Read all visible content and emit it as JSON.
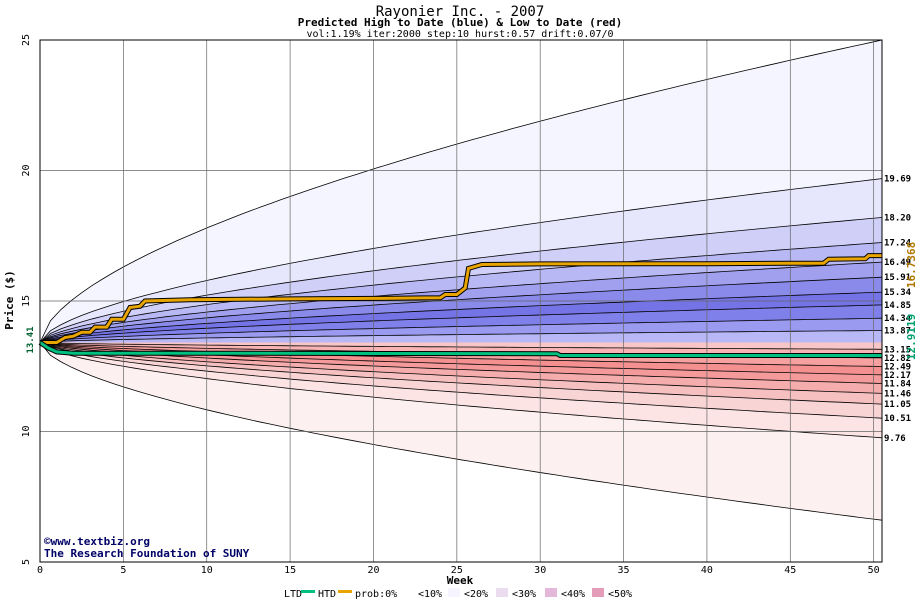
{
  "chart_data": {
    "type": "area",
    "title": "Rayonier Inc. - 2007",
    "subtitle": "Predicted High to Date (blue) &  Low to Date (red)",
    "params": "vol:1.19% iter:2000 step:10 hurst:0.57 drift:0.07/0",
    "xlabel": "Week",
    "ylabel": "Price ($)",
    "xlim": [
      0,
      50.5
    ],
    "ylim": [
      5,
      25
    ],
    "x_ticks": [
      0,
      5,
      10,
      15,
      20,
      25,
      30,
      35,
      40,
      45,
      50
    ],
    "y_ticks": [
      5,
      10,
      15,
      20,
      25
    ],
    "grid": true,
    "start_price": 13.41,
    "start_price_label": "13.41",
    "upper_bands": [
      {
        "prob": "0%",
        "end": 25.0,
        "end_label": ""
      },
      {
        "prob": "<10%",
        "end": 19.69,
        "end_label": "19.69"
      },
      {
        "prob": "<20%",
        "end": 18.2,
        "end_label": "18.20"
      },
      {
        "prob": "<30%",
        "end": 17.24,
        "end_label": "17.24"
      },
      {
        "prob": "<40%",
        "end": 16.49,
        "end_label": "16.49"
      },
      {
        "prob": "<50%",
        "end": 15.91,
        "end_label": "15.91"
      },
      {
        "prob": "<50%",
        "end": 15.34,
        "end_label": "15.34"
      },
      {
        "prob": "<50%",
        "end": 14.85,
        "end_label": "14.85"
      },
      {
        "prob": "<50%",
        "end": 14.34,
        "end_label": "14.34"
      },
      {
        "prob": "<50%",
        "end": 13.87,
        "end_label": "13.87"
      }
    ],
    "lower_bands": [
      {
        "prob": "<50%",
        "end": 13.15,
        "end_label": "13.15"
      },
      {
        "prob": "<50%",
        "end": 12.82,
        "end_label": "12.82"
      },
      {
        "prob": "<50%",
        "end": 12.49,
        "end_label": "12.49"
      },
      {
        "prob": "<50%",
        "end": 12.17,
        "end_label": "12.17"
      },
      {
        "prob": "<40%",
        "end": 11.84,
        "end_label": "11.84"
      },
      {
        "prob": "<30%",
        "end": 11.46,
        "end_label": "11.46"
      },
      {
        "prob": "<20%",
        "end": 11.05,
        "end_label": "11.05"
      },
      {
        "prob": "<10%",
        "end": 10.51,
        "end_label": "10.51"
      },
      {
        "prob": "0%",
        "end": 9.76,
        "end_label": "9.76"
      },
      {
        "prob": "0%",
        "end": 6.6,
        "end_label": ""
      }
    ],
    "series": [
      {
        "name": "HTD",
        "color": "#e8a400",
        "end_label": "16.7368",
        "points": [
          [
            0,
            13.41
          ],
          [
            1,
            13.41
          ],
          [
            1.5,
            13.6
          ],
          [
            2,
            13.65
          ],
          [
            2.5,
            13.8
          ],
          [
            3,
            13.8
          ],
          [
            3.3,
            14.0
          ],
          [
            4,
            14.0
          ],
          [
            4.3,
            14.3
          ],
          [
            5,
            14.3
          ],
          [
            5.4,
            14.75
          ],
          [
            6,
            14.8
          ],
          [
            6.3,
            15.0
          ],
          [
            9,
            15.05
          ],
          [
            15,
            15.08
          ],
          [
            20,
            15.1
          ],
          [
            23,
            15.12
          ],
          [
            24,
            15.12
          ],
          [
            24.3,
            15.25
          ],
          [
            25,
            15.25
          ],
          [
            25.5,
            15.5
          ],
          [
            25.7,
            16.25
          ],
          [
            26.5,
            16.4
          ],
          [
            30,
            16.42
          ],
          [
            40,
            16.43
          ],
          [
            45,
            16.45
          ],
          [
            47,
            16.45
          ],
          [
            47.3,
            16.6
          ],
          [
            49.5,
            16.62
          ],
          [
            49.7,
            16.74
          ],
          [
            50.5,
            16.74
          ]
        ]
      },
      {
        "name": "LTD",
        "color": "#00c080",
        "end_label": "12.9119",
        "points": [
          [
            0,
            13.41
          ],
          [
            0.5,
            13.2
          ],
          [
            1,
            13.05
          ],
          [
            2,
            13.0
          ],
          [
            10,
            13.0
          ],
          [
            31,
            12.98
          ],
          [
            31.2,
            12.91
          ],
          [
            50.5,
            12.91
          ]
        ]
      }
    ],
    "legend": {
      "ltd": "LTD",
      "htd": "HTD",
      "items": [
        "prob:0%",
        "<10%",
        "<20%",
        "<30%",
        "<40%",
        "<50%"
      ]
    },
    "colors": {
      "upper": [
        "#f5f5ff",
        "#e6e6fc",
        "#cfcff8",
        "#b8b8f4",
        "#a0a0ef",
        "#8a8aea",
        "#7474e6",
        "#8080ea",
        "#9a9af0",
        "#b8b8f6"
      ],
      "lower": [
        "#f8c6c6",
        "#f8b4b4",
        "#f6a0a0",
        "#f49090",
        "#f49a9a",
        "#f4acac",
        "#f6c0c0",
        "#f8d4d4",
        "#fce4e4",
        "#fdf0f0"
      ],
      "legend": [
        "#ffffff",
        "#f6f4ff",
        "#ecdcf0",
        "#e4b8d8",
        "#e49cb8",
        "#c080c0"
      ]
    },
    "credit_line1": "©www.textbiz.org",
    "credit_line2": "The Research Foundation of SUNY"
  }
}
